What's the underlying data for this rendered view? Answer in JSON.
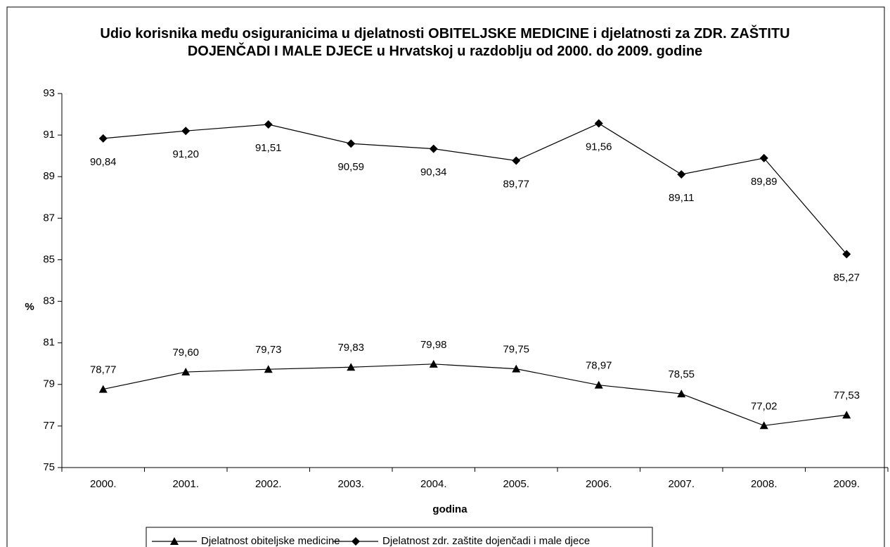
{
  "chart_data": {
    "type": "line",
    "title": "Udio korisnika među osiguranicima u djelatnosti OBITELJSKE MEDICINE i djelatnosti za ZDR. ZAŠTITU DOJENČADI I MALE DJECE u Hrvatskoj u razdoblju od 2000. do 2009. godine",
    "xlabel": "godina",
    "ylabel": "%",
    "categories": [
      "2000.",
      "2001.",
      "2002.",
      "2003.",
      "2004.",
      "2005.",
      "2006.",
      "2007.",
      "2008.",
      "2009."
    ],
    "series": [
      {
        "name": "Djelatnost obiteljske medicine",
        "color": "#000000",
        "marker": "triangle",
        "values": [
          78.77,
          79.6,
          79.73,
          79.83,
          79.98,
          79.75,
          78.97,
          78.55,
          77.02,
          77.53
        ],
        "value_labels": [
          "78,77",
          "79,60",
          "79,73",
          "79,83",
          "79,98",
          "79,75",
          "78,97",
          "78,55",
          "77,02",
          "77,53"
        ]
      },
      {
        "name": "Djelatnost zdr. zaštite dojenčadi i male djece",
        "color": "#000000",
        "marker": "diamond",
        "values": [
          90.84,
          91.2,
          91.51,
          90.59,
          90.34,
          89.77,
          91.56,
          89.11,
          89.89,
          85.27
        ],
        "value_labels": [
          "90,84",
          "91,20",
          "91,51",
          "90,59",
          "90,34",
          "89,77",
          "91,56",
          "89,11",
          "89,89",
          "85,27"
        ]
      }
    ],
    "ylim": [
      75,
      93
    ],
    "yticks": [
      75,
      77,
      79,
      81,
      83,
      85,
      87,
      89,
      91,
      93
    ],
    "grid": false
  }
}
